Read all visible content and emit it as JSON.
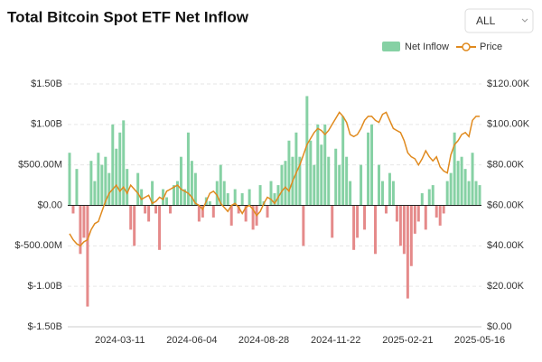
{
  "chart_data": {
    "type": "bar-line",
    "title": "Total Bitcoin Spot ETF Net Inflow",
    "range_selector": "ALL",
    "categories": [
      null,
      null,
      null,
      null,
      null,
      null,
      null,
      null,
      null,
      null,
      null,
      null,
      null,
      null,
      "2024-03-11",
      null,
      null,
      null,
      null,
      null,
      null,
      null,
      null,
      null,
      null,
      null,
      null,
      null,
      null,
      null,
      null,
      null,
      null,
      null,
      "2024-06-04",
      null,
      null,
      null,
      null,
      null,
      null,
      null,
      null,
      null,
      null,
      null,
      null,
      null,
      null,
      null,
      null,
      null,
      null,
      null,
      "2024-08-28",
      null,
      null,
      null,
      null,
      null,
      null,
      null,
      null,
      null,
      null,
      null,
      null,
      null,
      null,
      null,
      null,
      null,
      null,
      null,
      "2024-11-22",
      null,
      null,
      null,
      null,
      null,
      null,
      null,
      null,
      null,
      null,
      null,
      null,
      null,
      null,
      null,
      null,
      null,
      null,
      null,
      "2025-02-21",
      null,
      null,
      null,
      null,
      null,
      null,
      null,
      null,
      null,
      null,
      null,
      null,
      null,
      null,
      null,
      null,
      null,
      null,
      null,
      "2025-05-16"
    ],
    "series": [
      {
        "name": "Net Inflow",
        "color": "#86d1a4",
        "negative_color": "#e58a8a",
        "values": [
          650000000.0,
          -100000000.0,
          450000000.0,
          -600000000.0,
          -400000000.0,
          -1250000000.0,
          550000000.0,
          300000000.0,
          650000000.0,
          500000000.0,
          600000000.0,
          400000000.0,
          1000000000.0,
          700000000.0,
          900000000.0,
          1050000000.0,
          450000000.0,
          -300000000.0,
          -500000000.0,
          400000000.0,
          200000000.0,
          -100000000.0,
          -200000000.0,
          300000000.0,
          -100000000.0,
          -550000000.0,
          200000000.0,
          100000000.0,
          -100000000.0,
          250000000.0,
          300000000.0,
          600000000.0,
          200000000.0,
          900000000.0,
          550000000.0,
          400000000.0,
          -200000000.0,
          -150000000.0,
          100000000.0,
          50000000.0,
          -150000000.0,
          300000000.0,
          500000000.0,
          300000000.0,
          150000000.0,
          -250000000.0,
          200000000.0,
          -100000000.0,
          150000000.0,
          -200000000.0,
          200000000.0,
          -300000000.0,
          -250000000.0,
          250000000.0,
          50000000.0,
          -150000000.0,
          300000000.0,
          150000000.0,
          250000000.0,
          500000000.0,
          550000000.0,
          800000000.0,
          600000000.0,
          900000000.0,
          600000000.0,
          -500000000.0,
          1350000000.0,
          800000000.0,
          500000000.0,
          1000000000.0,
          750000000.0,
          1000000000.0,
          600000000.0,
          -400000000.0,
          700000000.0,
          500000000.0,
          1100000000.0,
          600000000.0,
          300000000.0,
          -550000000.0,
          -400000000.0,
          500000000.0,
          -300000000.0,
          900000000.0,
          1000000000.0,
          -600000000.0,
          500000000.0,
          300000000.0,
          -100000000.0,
          400000000.0,
          300000000.0,
          -200000000.0,
          -500000000.0,
          -600000000.0,
          -1150000000.0,
          -750000000.0,
          -350000000.0,
          -200000000.0,
          150000000.0,
          -300000000.0,
          200000000.0,
          250000000.0,
          -150000000.0,
          -250000000.0,
          -100000000.0,
          300000000.0,
          400000000.0,
          900000000.0,
          550000000.0,
          600000000.0,
          450000000.0,
          300000000.0,
          650000000.0,
          300000000.0,
          250000000.0
        ]
      },
      {
        "name": "Price",
        "color": "#e08a1e",
        "axis": "y2",
        "values": [
          46000,
          43000,
          41000,
          40000,
          42000,
          43000,
          48000,
          51000,
          52000,
          57000,
          62000,
          66000,
          68000,
          70000,
          67000,
          69000,
          66000,
          70000,
          68000,
          66000,
          63000,
          64000,
          65000,
          61000,
          62000,
          64000,
          63000,
          67000,
          68000,
          69000,
          70000,
          68000,
          67000,
          66000,
          64000,
          61000,
          60000,
          58000,
          62000,
          66000,
          67000,
          65000,
          61000,
          59000,
          57000,
          60000,
          61000,
          59000,
          56000,
          59000,
          60000,
          58000,
          55000,
          57000,
          61000,
          64000,
          63000,
          61000,
          64000,
          67000,
          69000,
          67000,
          72000,
          76000,
          80000,
          85000,
          90000,
          93000,
          96000,
          98000,
          97000,
          95000,
          97000,
          100000,
          103000,
          106000,
          104000,
          101000,
          95000,
          94000,
          95000,
          98000,
          102000,
          104000,
          104000,
          102000,
          101000,
          105000,
          106000,
          102000,
          98000,
          97000,
          96000,
          92000,
          86000,
          84000,
          83000,
          80000,
          83000,
          87000,
          84000,
          82000,
          84000,
          79000,
          77000,
          76000,
          85000,
          90000,
          92000,
          95000,
          96000,
          94000,
          102000,
          104000,
          104000
        ]
      }
    ],
    "ylim": [
      -1500000000.0,
      1500000000.0
    ],
    "yticks": [
      {
        "value": 1500000000.0,
        "label": "$1.50B"
      },
      {
        "value": 1000000000.0,
        "label": "$1.00B"
      },
      {
        "value": 500000000.0,
        "label": "$500.00M"
      },
      {
        "value": 0,
        "label": "$0.00"
      },
      {
        "value": -500000000.0,
        "label": "$-500.00M"
      },
      {
        "value": -1000000000.0,
        "label": "$-1.00B"
      },
      {
        "value": -1500000000.0,
        "label": "$-1.50B"
      }
    ],
    "y2lim": [
      0,
      120000
    ],
    "y2ticks": [
      {
        "value": 120000,
        "label": "$120.00K"
      },
      {
        "value": 100000,
        "label": "$100.00K"
      },
      {
        "value": 80000,
        "label": "$80.00K"
      },
      {
        "value": 60000,
        "label": "$60.00K"
      },
      {
        "value": 40000,
        "label": "$40.00K"
      },
      {
        "value": 20000,
        "label": "$20.00K"
      },
      {
        "value": 0,
        "label": "$0.00"
      }
    ],
    "grid": true
  }
}
